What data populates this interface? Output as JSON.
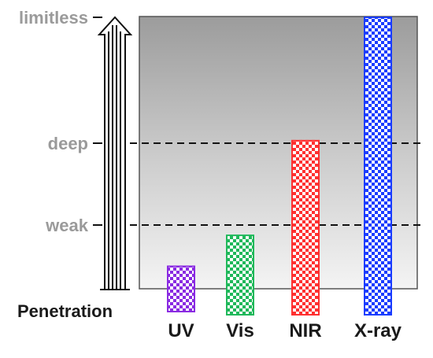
{
  "chart_data": {
    "type": "bar",
    "ylabel": "Penetration",
    "y_levels": [
      "weak",
      "deep",
      "limitless"
    ],
    "categories": [
      "UV",
      "Vis",
      "NIR",
      "X-ray"
    ],
    "values": [
      0.18,
      0.42,
      1.02,
      2.0
    ],
    "ylim": [
      0,
      2
    ],
    "grid": "dashed lines at weak and deep",
    "colors": [
      "#8a2be2",
      "#1fb85a",
      "#ff3030",
      "#1a3cff"
    ],
    "background": "gray gradient, dark at top to light at bottom"
  }
}
